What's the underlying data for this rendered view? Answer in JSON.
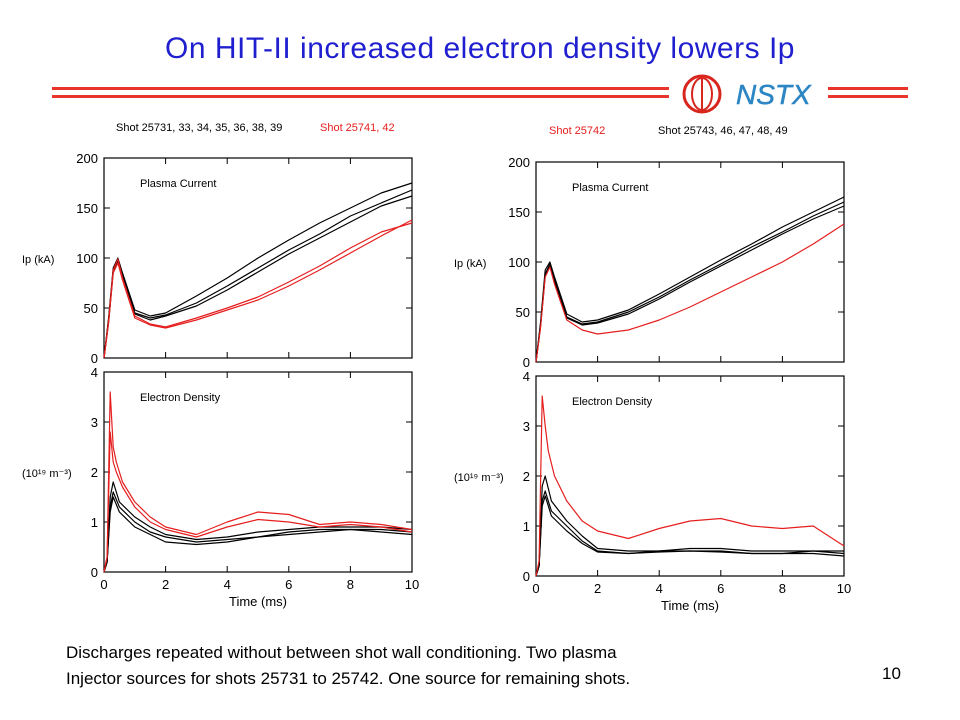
{
  "slide": {
    "title": "On HIT-II increased electron density lowers Ip",
    "logo_text": "NSTX",
    "caption_line1": "Discharges repeated without between shot wall conditioning. Two plasma",
    "caption_line2": "Injector sources for shots 25731 to 25742. One source for remaining shots.",
    "page_number": "10",
    "colors": {
      "title": "#1f1fd0",
      "rule": "#e8342b",
      "red_series": "#e51e1e"
    }
  },
  "legends": {
    "left_black": "Shot 25731, 33, 34, 35, 36, 38, 39",
    "left_red": "Shot 25741, 42",
    "right_red": "Shot 25742",
    "right_black": "Shot 25743, 46, 47, 48, 49"
  },
  "chart_data": [
    {
      "type": "line",
      "title": "Plasma Current",
      "ylabel": "Ip (kA)",
      "xlabel": "",
      "xlim": [
        0,
        10
      ],
      "ylim": [
        0,
        200
      ],
      "yticks": [
        0,
        50,
        100,
        150,
        200
      ],
      "series": [
        {
          "color": "#000",
          "x": [
            0,
            0.15,
            0.3,
            0.45,
            0.6,
            1,
            1.5,
            2,
            3,
            4,
            5,
            6,
            7,
            8,
            9,
            10
          ],
          "y": [
            0,
            40,
            90,
            100,
            85,
            48,
            42,
            45,
            62,
            80,
            100,
            118,
            135,
            150,
            165,
            175
          ]
        },
        {
          "color": "#000",
          "x": [
            0,
            0.15,
            0.3,
            0.45,
            0.6,
            1,
            1.5,
            2,
            3,
            4,
            5,
            6,
            7,
            8,
            9,
            10
          ],
          "y": [
            0,
            38,
            88,
            98,
            82,
            45,
            40,
            43,
            55,
            72,
            90,
            108,
            124,
            142,
            155,
            168
          ]
        },
        {
          "color": "#000",
          "x": [
            0,
            0.15,
            0.3,
            0.45,
            0.6,
            1,
            1.5,
            2,
            3,
            4,
            5,
            6,
            7,
            8,
            9,
            10
          ],
          "y": [
            0,
            36,
            86,
            97,
            80,
            44,
            38,
            42,
            52,
            68,
            86,
            104,
            120,
            136,
            152,
            162
          ]
        },
        {
          "color": "#e51e1e",
          "x": [
            0,
            0.15,
            0.3,
            0.45,
            0.6,
            1,
            1.5,
            2,
            3,
            4,
            5,
            6,
            7,
            8,
            9,
            10
          ],
          "y": [
            0,
            35,
            85,
            95,
            78,
            40,
            33,
            30,
            38,
            48,
            58,
            72,
            88,
            105,
            122,
            138
          ]
        },
        {
          "color": "#e51e1e",
          "x": [
            0,
            0.15,
            0.3,
            0.45,
            0.6,
            1,
            1.5,
            2,
            3,
            4,
            5,
            6,
            7,
            8,
            9,
            10
          ],
          "y": [
            0,
            37,
            88,
            99,
            80,
            42,
            34,
            31,
            40,
            50,
            61,
            76,
            92,
            110,
            126,
            135
          ]
        }
      ]
    },
    {
      "type": "line",
      "title": "Electron Density",
      "ylabel": "(10¹⁹ m⁻³)",
      "xlabel": "Time (ms)",
      "xlim": [
        0,
        10
      ],
      "ylim": [
        0,
        4
      ],
      "xticks": [
        0,
        2,
        4,
        6,
        8,
        10
      ],
      "yticks": [
        0,
        1,
        2,
        3,
        4
      ],
      "series": [
        {
          "color": "#000",
          "x": [
            0,
            0.1,
            0.2,
            0.3,
            0.5,
            1,
            1.5,
            2,
            3,
            4,
            5,
            6,
            7,
            8,
            9,
            10
          ],
          "y": [
            0,
            0.2,
            1.5,
            1.8,
            1.4,
            1.1,
            0.9,
            0.75,
            0.65,
            0.7,
            0.8,
            0.85,
            0.9,
            0.9,
            0.9,
            0.85
          ]
        },
        {
          "color": "#000",
          "x": [
            0,
            0.1,
            0.2,
            0.3,
            0.5,
            1,
            1.5,
            2,
            3,
            4,
            5,
            6,
            7,
            8,
            9,
            10
          ],
          "y": [
            0,
            0.2,
            1.3,
            1.6,
            1.3,
            1.0,
            0.8,
            0.7,
            0.6,
            0.65,
            0.7,
            0.8,
            0.85,
            0.85,
            0.85,
            0.8
          ]
        },
        {
          "color": "#000",
          "x": [
            0,
            0.1,
            0.2,
            0.3,
            0.5,
            1,
            1.5,
            2,
            3,
            4,
            5,
            6,
            7,
            8,
            9,
            10
          ],
          "y": [
            0,
            0.2,
            1.2,
            1.5,
            1.2,
            0.9,
            0.75,
            0.6,
            0.55,
            0.6,
            0.7,
            0.75,
            0.8,
            0.85,
            0.8,
            0.75
          ]
        },
        {
          "color": "#e51e1e",
          "x": [
            0,
            0.1,
            0.2,
            0.3,
            0.4,
            0.6,
            1,
            1.5,
            2,
            3,
            4,
            5,
            6,
            7,
            8,
            9,
            10
          ],
          "y": [
            0,
            0.3,
            3.6,
            2.5,
            2.2,
            1.8,
            1.4,
            1.1,
            0.9,
            0.75,
            1.0,
            1.2,
            1.15,
            0.95,
            1.0,
            0.95,
            0.85
          ]
        },
        {
          "color": "#e51e1e",
          "x": [
            0,
            0.1,
            0.2,
            0.3,
            0.4,
            0.6,
            1,
            1.5,
            2,
            3,
            4,
            5,
            6,
            7,
            8,
            9,
            10
          ],
          "y": [
            0,
            0.3,
            2.8,
            2.2,
            2.0,
            1.7,
            1.3,
            1.0,
            0.85,
            0.7,
            0.9,
            1.05,
            1.0,
            0.9,
            0.95,
            0.9,
            0.8
          ]
        }
      ]
    },
    {
      "type": "line",
      "title": "Plasma Current",
      "ylabel": "Ip (kA)",
      "xlabel": "",
      "xlim": [
        0,
        10
      ],
      "ylim": [
        0,
        200
      ],
      "yticks": [
        0,
        50,
        100,
        150,
        200
      ],
      "series": [
        {
          "color": "#000",
          "x": [
            0,
            0.15,
            0.3,
            0.45,
            0.6,
            1,
            1.5,
            2,
            3,
            4,
            5,
            6,
            7,
            8,
            9,
            10
          ],
          "y": [
            0,
            40,
            92,
            100,
            85,
            48,
            40,
            42,
            52,
            68,
            85,
            102,
            118,
            135,
            150,
            165
          ]
        },
        {
          "color": "#000",
          "x": [
            0,
            0.15,
            0.3,
            0.45,
            0.6,
            1,
            1.5,
            2,
            3,
            4,
            5,
            6,
            7,
            8,
            9,
            10
          ],
          "y": [
            0,
            38,
            88,
            98,
            82,
            45,
            38,
            40,
            50,
            65,
            82,
            98,
            115,
            130,
            146,
            160
          ]
        },
        {
          "color": "#000",
          "x": [
            0,
            0.15,
            0.3,
            0.45,
            0.6,
            1,
            1.5,
            2,
            3,
            4,
            5,
            6,
            7,
            8,
            9,
            10
          ],
          "y": [
            0,
            36,
            86,
            96,
            80,
            44,
            37,
            39,
            48,
            63,
            80,
            96,
            112,
            128,
            143,
            156
          ]
        },
        {
          "color": "#e51e1e",
          "x": [
            0,
            0.15,
            0.3,
            0.45,
            0.6,
            1,
            1.5,
            2,
            3,
            4,
            5,
            6,
            7,
            8,
            9,
            10
          ],
          "y": [
            0,
            35,
            85,
            95,
            78,
            42,
            32,
            28,
            32,
            42,
            55,
            70,
            85,
            100,
            118,
            138
          ]
        }
      ]
    },
    {
      "type": "line",
      "title": "Electron Density",
      "ylabel": "(10¹⁹ m⁻³)",
      "xlabel": "Time (ms)",
      "xlim": [
        0,
        10
      ],
      "ylim": [
        0,
        4
      ],
      "xticks": [
        0,
        2,
        4,
        6,
        8,
        10
      ],
      "yticks": [
        0,
        1,
        2,
        3,
        4
      ],
      "series": [
        {
          "color": "#000",
          "x": [
            0,
            0.1,
            0.2,
            0.3,
            0.5,
            1,
            1.5,
            2,
            3,
            4,
            5,
            6,
            7,
            8,
            9,
            10
          ],
          "y": [
            0,
            0.2,
            1.8,
            2.0,
            1.5,
            1.1,
            0.8,
            0.55,
            0.5,
            0.5,
            0.55,
            0.55,
            0.5,
            0.5,
            0.5,
            0.45
          ]
        },
        {
          "color": "#000",
          "x": [
            0,
            0.1,
            0.2,
            0.3,
            0.5,
            1,
            1.5,
            2,
            3,
            4,
            5,
            6,
            7,
            8,
            9,
            10
          ],
          "y": [
            0,
            0.2,
            1.5,
            1.7,
            1.3,
            1.0,
            0.7,
            0.5,
            0.45,
            0.5,
            0.5,
            0.5,
            0.45,
            0.45,
            0.45,
            0.4
          ]
        },
        {
          "color": "#000",
          "x": [
            0,
            0.1,
            0.2,
            0.3,
            0.5,
            1,
            1.5,
            2,
            3,
            4,
            5,
            6,
            7,
            8,
            9,
            10
          ],
          "y": [
            0,
            0.2,
            1.4,
            1.6,
            1.2,
            0.9,
            0.65,
            0.48,
            0.45,
            0.48,
            0.5,
            0.48,
            0.45,
            0.45,
            0.5,
            0.5
          ]
        },
        {
          "color": "#e51e1e",
          "x": [
            0,
            0.1,
            0.2,
            0.3,
            0.4,
            0.6,
            1,
            1.5,
            2,
            3,
            4,
            5,
            6,
            7,
            8,
            9,
            10
          ],
          "y": [
            0,
            0.3,
            3.6,
            3.0,
            2.5,
            2.0,
            1.5,
            1.1,
            0.9,
            0.75,
            0.95,
            1.1,
            1.15,
            1.0,
            0.95,
            1.0,
            0.6
          ]
        }
      ]
    }
  ]
}
